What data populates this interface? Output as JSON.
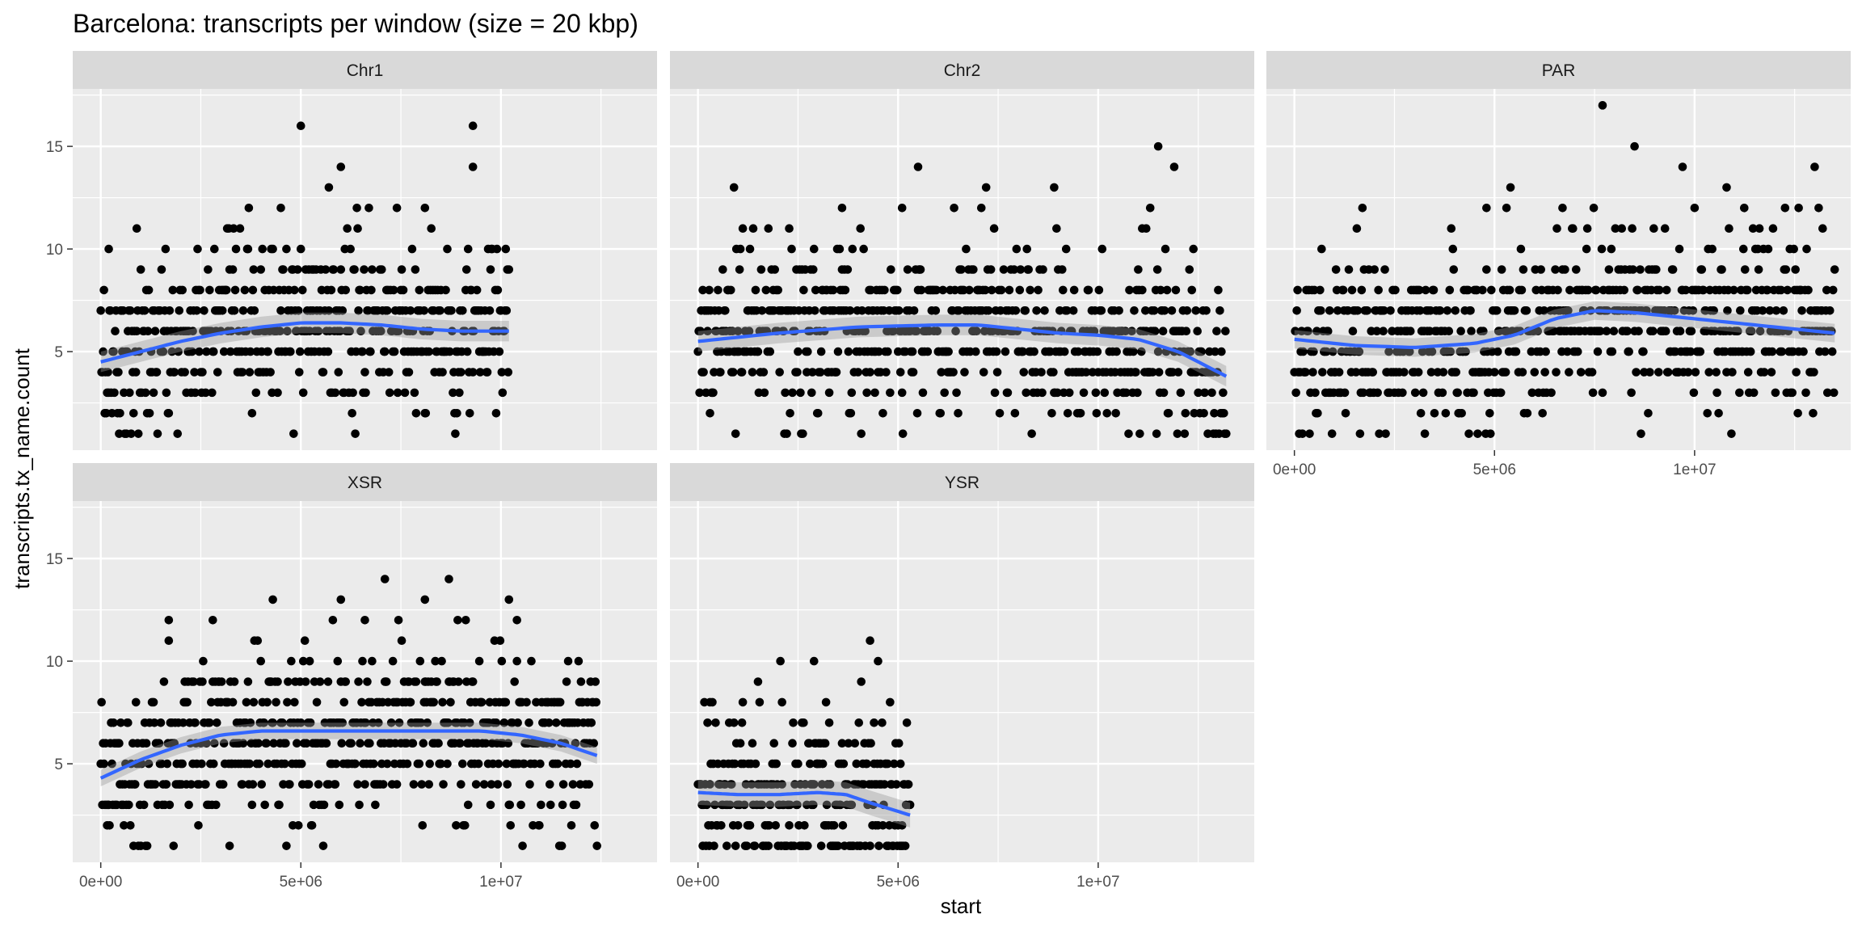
{
  "chart_data": {
    "type": "scatter",
    "title": "Barcelona: transcripts per window (size = 20 kbp)",
    "xlabel": "start",
    "ylabel": "transcripts.tx_name.count",
    "xlim": [
      -700000,
      13900000
    ],
    "ylim": [
      0.2,
      17.8
    ],
    "x_ticks": [
      0,
      5000000,
      10000000
    ],
    "x_tick_labels": [
      "0e+00",
      "5e+06",
      "1e+07"
    ],
    "y_ticks": [
      5,
      10,
      15
    ],
    "y_tick_labels": [
      "5",
      "10",
      "15"
    ],
    "layout": "facet_wrap, 3 columns, shared axes",
    "smooth": "blue loess line with grey confidence band",
    "colors": {
      "points": "#000000",
      "smooth": "#3366FF",
      "band": "#999999",
      "panel": "#EBEBEB",
      "strip": "#D9D9D9",
      "grid": "#FFFFFF"
    },
    "panels": [
      {
        "name": "Chr1",
        "x_extent": [
          0,
          10200000
        ],
        "smooth": [
          [
            0,
            4.5
          ],
          [
            1000000,
            5.0
          ],
          [
            2000000,
            5.5
          ],
          [
            3000000,
            5.9
          ],
          [
            4000000,
            6.2
          ],
          [
            5000000,
            6.4
          ],
          [
            6000000,
            6.4
          ],
          [
            7000000,
            6.3
          ],
          [
            8000000,
            6.1
          ],
          [
            9000000,
            6.0
          ],
          [
            10200000,
            6.0
          ]
        ],
        "band_halfwidth": 0.5,
        "outliers": [
          [
            5000000,
            16
          ],
          [
            9300000,
            16
          ],
          [
            6000000,
            14
          ],
          [
            9300000,
            14
          ],
          [
            5700000,
            13
          ],
          [
            900000,
            11
          ],
          [
            200000,
            10
          ],
          [
            4500000,
            12
          ],
          [
            7400000,
            12
          ],
          [
            8100000,
            12
          ]
        ]
      },
      {
        "name": "Chr2",
        "x_extent": [
          0,
          13200000
        ],
        "smooth": [
          [
            0,
            5.5
          ],
          [
            2000000,
            5.9
          ],
          [
            4000000,
            6.2
          ],
          [
            6000000,
            6.3
          ],
          [
            7000000,
            6.3
          ],
          [
            8000000,
            6.1
          ],
          [
            9000000,
            5.9
          ],
          [
            10000000,
            5.8
          ],
          [
            11000000,
            5.6
          ],
          [
            12000000,
            5.0
          ],
          [
            13200000,
            3.8
          ]
        ],
        "band_halfwidth": 0.5,
        "outliers": [
          [
            900000,
            13
          ],
          [
            5500000,
            14
          ],
          [
            11500000,
            15
          ],
          [
            11900000,
            14
          ],
          [
            7200000,
            13
          ],
          [
            8900000,
            13
          ],
          [
            11300000,
            12
          ],
          [
            3600000,
            12
          ],
          [
            5100000,
            12
          ],
          [
            11200000,
            11
          ],
          [
            11100000,
            11
          ]
        ]
      },
      {
        "name": "PAR",
        "x_extent": [
          0,
          13500000
        ],
        "smooth": [
          [
            0,
            5.6
          ],
          [
            1500000,
            5.3
          ],
          [
            3000000,
            5.2
          ],
          [
            4500000,
            5.4
          ],
          [
            5500000,
            5.8
          ],
          [
            6500000,
            6.6
          ],
          [
            7500000,
            7.0
          ],
          [
            8500000,
            6.9
          ],
          [
            10000000,
            6.6
          ],
          [
            11500000,
            6.3
          ],
          [
            13500000,
            5.9
          ]
        ],
        "band_halfwidth": 0.45,
        "outliers": [
          [
            7700000,
            17
          ],
          [
            8500000,
            15
          ],
          [
            9700000,
            14
          ],
          [
            13000000,
            14
          ],
          [
            5400000,
            13
          ],
          [
            10800000,
            13
          ],
          [
            4800000,
            12
          ],
          [
            5300000,
            12
          ],
          [
            6700000,
            12
          ],
          [
            1700000,
            12
          ],
          [
            12600000,
            12
          ],
          [
            10000000,
            12
          ]
        ]
      },
      {
        "name": "XSR",
        "x_extent": [
          0,
          12400000
        ],
        "smooth": [
          [
            0,
            4.3
          ],
          [
            1000000,
            5.2
          ],
          [
            2000000,
            5.9
          ],
          [
            3000000,
            6.4
          ],
          [
            4000000,
            6.6
          ],
          [
            6000000,
            6.6
          ],
          [
            8000000,
            6.6
          ],
          [
            9500000,
            6.6
          ],
          [
            10500000,
            6.4
          ],
          [
            11500000,
            6.0
          ],
          [
            12400000,
            5.4
          ]
        ],
        "band_halfwidth": 0.4,
        "outliers": [
          [
            7100000,
            14
          ],
          [
            8700000,
            14
          ],
          [
            4300000,
            13
          ],
          [
            6000000,
            13
          ],
          [
            8100000,
            13
          ],
          [
            10200000,
            13
          ],
          [
            1700000,
            12
          ],
          [
            2800000,
            12
          ],
          [
            6600000,
            12
          ],
          [
            10400000,
            12
          ]
        ]
      },
      {
        "name": "YSR",
        "x_extent": [
          0,
          5300000
        ],
        "smooth": [
          [
            0,
            3.6
          ],
          [
            1000000,
            3.5
          ],
          [
            2000000,
            3.5
          ],
          [
            3000000,
            3.6
          ],
          [
            3700000,
            3.5
          ],
          [
            4300000,
            3.1
          ],
          [
            5300000,
            2.5
          ]
        ],
        "band_halfwidth": 0.6,
        "outliers": [
          [
            4300000,
            11
          ],
          [
            4500000,
            10
          ],
          [
            2900000,
            10
          ],
          [
            1500000,
            9
          ],
          [
            300000,
            8
          ],
          [
            3200000,
            8
          ],
          [
            2100000,
            8
          ],
          [
            4400000,
            7
          ]
        ]
      }
    ]
  }
}
